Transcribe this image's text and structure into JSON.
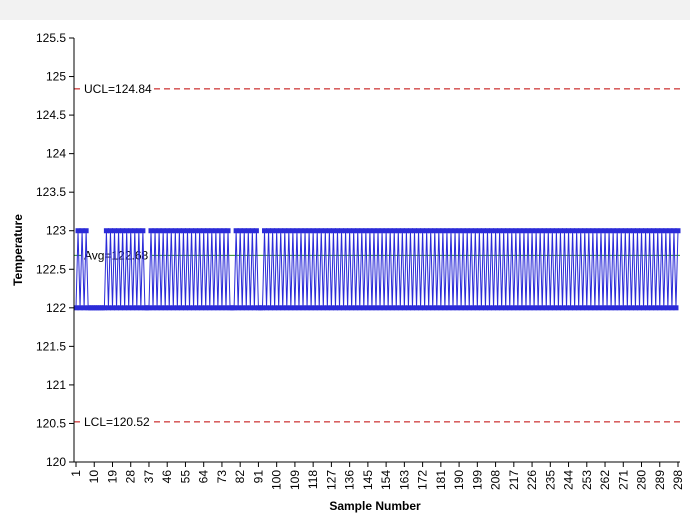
{
  "chart_data": {
    "type": "line",
    "title": "",
    "xlabel": "Sample Number",
    "ylabel": "Temperature",
    "ylim": [
      120,
      125.5
    ],
    "yticks": [
      120,
      120.5,
      121,
      121.5,
      122,
      122.5,
      123,
      123.5,
      124,
      124.5,
      125,
      125.5
    ],
    "ytick_labels": [
      "120",
      "120.5",
      "121",
      "121.5",
      "122",
      "122.5",
      "123",
      "123.5",
      "124",
      "124.5",
      "125",
      "125.5"
    ],
    "xlim": [
      1,
      298
    ],
    "xticks": [
      1,
      10,
      19,
      28,
      37,
      46,
      55,
      64,
      73,
      82,
      91,
      100,
      109,
      118,
      127,
      136,
      145,
      154,
      163,
      172,
      181,
      190,
      199,
      208,
      217,
      226,
      235,
      244,
      253,
      262,
      271,
      280,
      289,
      298
    ],
    "xtick_labels": [
      "1",
      "10",
      "19",
      "28",
      "37",
      "46",
      "55",
      "64",
      "73",
      "82",
      "91",
      "100",
      "109",
      "118",
      "127",
      "136",
      "145",
      "154",
      "163",
      "172",
      "181",
      "190",
      "199",
      "208",
      "217",
      "226",
      "235",
      "244",
      "253",
      "262",
      "271",
      "280",
      "289",
      "298"
    ],
    "grid": false,
    "legend": "none",
    "colors": {
      "series": "#2b2bd8",
      "out_of_control": "#ff0000",
      "avg_line": "#2e8b2e",
      "limit_line": "#c00000",
      "plot_background": "#ffffff",
      "page_background": "#f2f2f2"
    },
    "control_limits": {
      "ucl": {
        "value": 124.84,
        "label": "UCL=124.84"
      },
      "avg": {
        "value": 122.68,
        "label": "Avg=122.68"
      },
      "lcl": {
        "value": 120.52,
        "label": "LCL=120.52"
      }
    },
    "series": [
      {
        "x_start": 1,
        "values": [
          122,
          123,
          122,
          123,
          122,
          123,
          122,
          122,
          122,
          122,
          122,
          122,
          122,
          122,
          122,
          123,
          122,
          123,
          122,
          123,
          122,
          123,
          122,
          123,
          122,
          123,
          122,
          123,
          122,
          123,
          122,
          123,
          122,
          123,
          122,
          122,
          122,
          123,
          122,
          123,
          122,
          123,
          122,
          123,
          122,
          123,
          122,
          123,
          122,
          123,
          122,
          123,
          122,
          123,
          122,
          123,
          122,
          123,
          122,
          123,
          122,
          123,
          122,
          123,
          122,
          123,
          122,
          123,
          122,
          123,
          122,
          123,
          122,
          123,
          122,
          123,
          122,
          122,
          122,
          123,
          122,
          123,
          122,
          123,
          122,
          123,
          122,
          123,
          122,
          123,
          122,
          122,
          122,
          123,
          122,
          123,
          122,
          123,
          122,
          123,
          122,
          123,
          122,
          123,
          122,
          123,
          122,
          123,
          122,
          123,
          122,
          123,
          122,
          123,
          122,
          123,
          122,
          123,
          122,
          123,
          122,
          123,
          122,
          123,
          122,
          123,
          122,
          123,
          122,
          123,
          122,
          123,
          122,
          123,
          122,
          123,
          122,
          123,
          122,
          123,
          122,
          123,
          122,
          123,
          122,
          123,
          122,
          123,
          122,
          123,
          122,
          123,
          122,
          123,
          122,
          123,
          122,
          123,
          122,
          123,
          122,
          123,
          122,
          123,
          122,
          123,
          122,
          123,
          122,
          123,
          122,
          123,
          122,
          123,
          122,
          123,
          122,
          123,
          122,
          123,
          122,
          123,
          122,
          123,
          122,
          123,
          122,
          123,
          122,
          123,
          122,
          123,
          122,
          123,
          122,
          123,
          122,
          123,
          122,
          123,
          122,
          123,
          122,
          123,
          122,
          123,
          122,
          123,
          122,
          123,
          122,
          123,
          122,
          123,
          122,
          123,
          122,
          123,
          122,
          123,
          122,
          123,
          122,
          123,
          122,
          123,
          122,
          123,
          122,
          123,
          122,
          123,
          122,
          123,
          122,
          123,
          122,
          123,
          122,
          123,
          122,
          123,
          122,
          123,
          122,
          123,
          122,
          123,
          122,
          123,
          122,
          123,
          122,
          123,
          122,
          123,
          122,
          123,
          122,
          123,
          122,
          123,
          122,
          123,
          122,
          123,
          122,
          123,
          122,
          123,
          122,
          123,
          122,
          123,
          122,
          123,
          122,
          123,
          122,
          123,
          122,
          123,
          122,
          123,
          122,
          123,
          122,
          123,
          122,
          123,
          122,
          123,
          122,
          123,
          122,
          123,
          122,
          123
        ]
      }
    ]
  }
}
